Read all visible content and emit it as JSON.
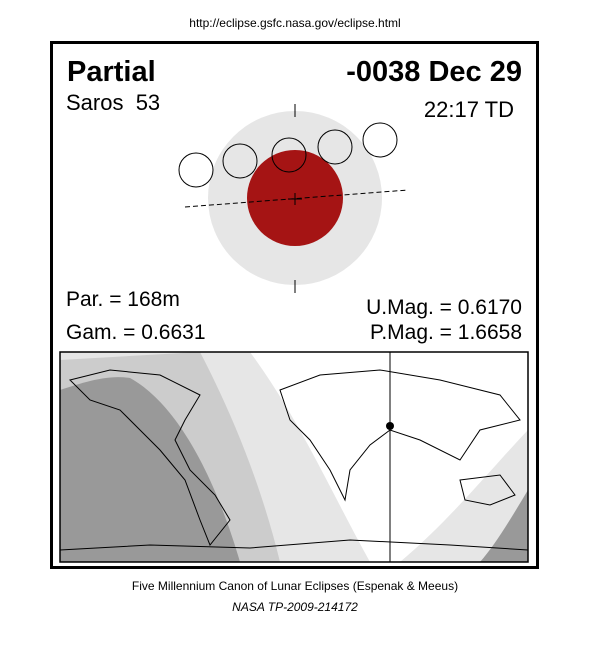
{
  "header": {
    "url": "http://eclipse.gsfc.nasa.gov/eclipse.html"
  },
  "eclipse": {
    "type": "Partial",
    "date": "-0038 Dec 29",
    "saros": "Saros  53",
    "time": "22:17 TD",
    "parameters": {
      "par": "Par. = 168m",
      "gam": "Gam. = 0.6631",
      "umag": "U.Mag. = 0.6170",
      "pmag": "P.Mag. = 1.6658"
    }
  },
  "footer": {
    "canon": "Five Millennium Canon of Lunar Eclipses (Espenak & Meeus)",
    "publication": "NASA TP-2009-214172"
  }
}
